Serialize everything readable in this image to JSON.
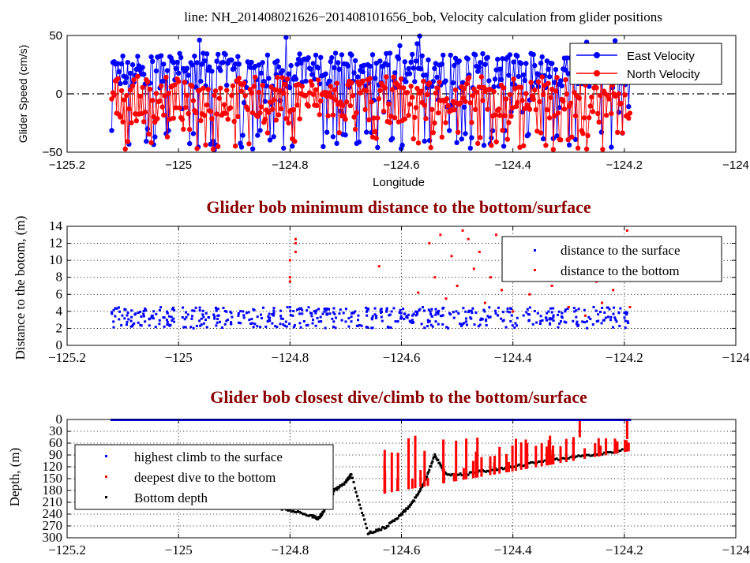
{
  "colors": {
    "blue": "#0000ff",
    "red": "#ff0000",
    "black": "#000000",
    "title_red": "#8b0000"
  },
  "chart_data": [
    {
      "type": "line",
      "title": "line: NH_201408021626−201408101656_bob, Velocity calculation from glider positions",
      "xlabel": "Longitude",
      "ylabel": "Glider Speed (cm/s)",
      "xlim": [
        -125.2,
        -124.0
      ],
      "ylim": [
        -50,
        50
      ],
      "xticks": [
        "−125.2",
        "−125",
        "−124.8",
        "−124.6",
        "−124.4",
        "−124.2",
        "−124"
      ],
      "yticks": [
        "−50",
        "0",
        "50"
      ],
      "legend": {
        "position": "top-right",
        "entries": [
          "East Velocity",
          "North Velocity"
        ]
      },
      "series": [
        {
          "name": "East Velocity",
          "color": "#0000ff",
          "x_range": [
            -125.12,
            -124.19
          ],
          "typical": [
            5,
            35
          ],
          "low_excursions_to": -48
        },
        {
          "name": "North Velocity",
          "color": "#ff0000",
          "x_range": [
            -125.12,
            -124.19
          ],
          "typical": [
            -25,
            15
          ],
          "low_excursions_to": -48
        }
      ]
    },
    {
      "type": "scatter",
      "title": "Glider bob minimum distance to the bottom/surface",
      "xlabel": "",
      "ylabel": "Distance to the botom, (m)",
      "xlim": [
        -125.2,
        -124.0
      ],
      "ylim": [
        0,
        14
      ],
      "xticks": [
        "−125.2",
        "−125",
        "−124.8",
        "−124.6",
        "−124.4",
        "−124.2",
        "−124"
      ],
      "yticks": [
        "0",
        "2",
        "4",
        "6",
        "8",
        "10",
        "12",
        "14"
      ],
      "legend": {
        "position": "top-right",
        "entries": [
          "distance to the surface",
          "distance to the bottom"
        ]
      },
      "series": [
        {
          "name": "distance to the surface",
          "color": "#0000ff",
          "x_range": [
            -125.12,
            -124.19
          ],
          "y_range": [
            2,
            4.5
          ]
        },
        {
          "name": "distance to the bottom",
          "color": "#ff0000",
          "points": [
            [
              -124.8,
              8
            ],
            [
              -124.8,
              10
            ],
            [
              -124.79,
              11
            ],
            [
              -124.79,
              12
            ],
            [
              -124.79,
              12.5
            ],
            [
              -124.8,
              7.5
            ],
            [
              -124.64,
              9.3
            ],
            [
              -124.57,
              6.2
            ],
            [
              -124.55,
              12
            ],
            [
              -124.54,
              8
            ],
            [
              -124.53,
              13
            ],
            [
              -124.52,
              5.5
            ],
            [
              -124.51,
              10.5
            ],
            [
              -124.5,
              7
            ],
            [
              -124.49,
              13.5
            ],
            [
              -124.48,
              12.5
            ],
            [
              -124.47,
              9
            ],
            [
              -124.46,
              11
            ],
            [
              -124.45,
              5
            ],
            [
              -124.44,
              8
            ],
            [
              -124.43,
              13
            ],
            [
              -124.42,
              6.5
            ],
            [
              -124.41,
              11.5
            ],
            [
              -124.4,
              4
            ],
            [
              -124.39,
              9.5
            ],
            [
              -124.37,
              6
            ],
            [
              -124.35,
              8.5
            ],
            [
              -124.33,
              7
            ],
            [
              -124.31,
              11
            ],
            [
              -124.3,
              4.5
            ],
            [
              -124.29,
              12.5
            ],
            [
              -124.28,
              8
            ],
            [
              -124.27,
              3.5
            ],
            [
              -124.25,
              7.5
            ],
            [
              -124.24,
              5
            ],
            [
              -124.22,
              6.5
            ],
            [
              -124.2,
              10
            ],
            [
              -124.19,
              4.5
            ],
            [
              -124.195,
              13.5
            ]
          ]
        }
      ]
    },
    {
      "type": "scatter",
      "title": "Glider bob closest dive/climb to the bottom/surface",
      "xlabel": "",
      "ylabel": "Depth, (m)",
      "xlim": [
        -125.2,
        -124.0
      ],
      "ylim": [
        300,
        0
      ],
      "xticks": [
        "−125.2",
        "−125",
        "−124.8",
        "−124.6",
        "−124.4",
        "−124.2",
        "−124"
      ],
      "yticks": [
        "0",
        "30",
        "60",
        "90",
        "120",
        "150",
        "180",
        "210",
        "240",
        "270",
        "300"
      ],
      "legend": {
        "position": "center-left",
        "entries": [
          "highest climb to the surface",
          "deepest dive to the bottom",
          "Bottom depth"
        ]
      },
      "series": [
        {
          "name": "highest climb to the surface",
          "color": "#0000ff",
          "x_range": [
            -125.12,
            -124.19
          ],
          "y": 1
        },
        {
          "name": "deepest dive to the bottom",
          "color": "#ff0000",
          "x_range": [
            -124.64,
            -124.19
          ],
          "y_range": [
            30,
            195
          ]
        },
        {
          "name": "Bottom depth",
          "color": "#000000",
          "points": [
            [
              -124.85,
              215
            ],
            [
              -124.8,
              230
            ],
            [
              -124.76,
              245
            ],
            [
              -124.75,
              252
            ],
            [
              -124.74,
              235
            ],
            [
              -124.72,
              180
            ],
            [
              -124.7,
              160
            ],
            [
              -124.69,
              140
            ],
            [
              -124.66,
              288
            ],
            [
              -124.63,
              275
            ],
            [
              -124.6,
              240
            ],
            [
              -124.58,
              210
            ],
            [
              -124.56,
              165
            ],
            [
              -124.54,
              90
            ],
            [
              -124.52,
              140
            ],
            [
              -124.48,
              138
            ],
            [
              -124.44,
              128
            ],
            [
              -124.4,
              120
            ],
            [
              -124.35,
              107
            ],
            [
              -124.3,
              96
            ],
            [
              -124.25,
              88
            ],
            [
              -124.2,
              78
            ]
          ]
        }
      ]
    }
  ]
}
